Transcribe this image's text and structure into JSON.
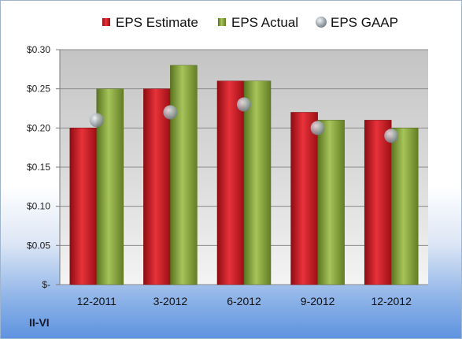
{
  "company": "II-VI",
  "colors": {
    "estimate": "#c0141c",
    "actual": "#7a9a2e",
    "gaap": "#9aa4ae"
  },
  "chart_data": {
    "type": "bar",
    "categories": [
      "12-2011",
      "3-2012",
      "6-2012",
      "9-2012",
      "12-2012"
    ],
    "series": [
      {
        "name": "EPS Estimate",
        "kind": "bar",
        "values": [
          0.2,
          0.25,
          0.26,
          0.22,
          0.21
        ]
      },
      {
        "name": "EPS Actual",
        "kind": "bar",
        "values": [
          0.25,
          0.28,
          0.26,
          0.21,
          0.2
        ]
      },
      {
        "name": "EPS GAAP",
        "kind": "marker",
        "values": [
          0.21,
          0.22,
          0.23,
          0.2,
          0.19
        ]
      }
    ],
    "ylim": [
      0,
      0.3
    ],
    "yticks": [
      {
        "value": 0.3,
        "label": "$0.30"
      },
      {
        "value": 0.25,
        "label": "$0.25"
      },
      {
        "value": 0.2,
        "label": "$0.20"
      },
      {
        "value": 0.15,
        "label": "$0.15"
      },
      {
        "value": 0.1,
        "label": "$0.10"
      },
      {
        "value": 0.05,
        "label": "$0.05"
      },
      {
        "value": 0.0,
        "label": "$-"
      }
    ],
    "legend_position": "top",
    "grid": true
  }
}
